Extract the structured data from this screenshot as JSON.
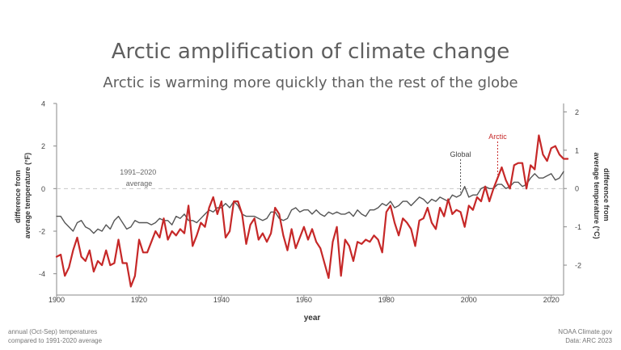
{
  "chart_data": {
    "type": "line",
    "title": "Arctic amplification of climate change",
    "subtitle": "Arctic is warming more quickly than the rest of the globe",
    "xlabel": "year",
    "ylabel_left": "difference from average temperature (°F)",
    "ylabel_right": "difference from average temperature (°C)",
    "xlim": [
      1900,
      2023
    ],
    "ylim": [
      -5,
      4
    ],
    "ylim_right": [
      -2.78,
      2.22
    ],
    "x_ticks": [
      1900,
      1920,
      1940,
      1960,
      1980,
      2000,
      2020
    ],
    "y_ticks_left": [
      -4,
      -2,
      0,
      2,
      4
    ],
    "y_ticks_right": [
      -2,
      -1,
      0,
      1,
      2
    ],
    "grid": false,
    "baseline_label": "1991–2020 average",
    "annotations": [
      "Global",
      "Arctic"
    ],
    "colors": {
      "arctic": "#c62828",
      "global": "#555555",
      "baseline": "#c8c8c8"
    },
    "x_start": 1900,
    "series": [
      {
        "name": "Arctic",
        "values": [
          -3.2,
          -3.1,
          -4.1,
          -3.7,
          -2.9,
          -2.3,
          -3.2,
          -3.4,
          -2.9,
          -3.9,
          -3.4,
          -3.6,
          -2.9,
          -3.6,
          -3.5,
          -2.4,
          -3.5,
          -3.5,
          -4.6,
          -4.1,
          -2.4,
          -3.0,
          -3.0,
          -2.5,
          -2.0,
          -2.3,
          -1.4,
          -2.4,
          -2.0,
          -2.2,
          -1.9,
          -2.1,
          -0.8,
          -2.7,
          -2.2,
          -1.6,
          -1.8,
          -0.9,
          -0.4,
          -1.2,
          -0.6,
          -2.3,
          -2.0,
          -0.6,
          -0.6,
          -1.2,
          -2.6,
          -1.7,
          -1.4,
          -2.4,
          -2.1,
          -2.5,
          -2.1,
          -0.9,
          -1.2,
          -2.2,
          -2.9,
          -1.9,
          -2.8,
          -2.3,
          -1.8,
          -2.4,
          -1.9,
          -2.5,
          -2.8,
          -3.5,
          -4.2,
          -2.5,
          -1.8,
          -4.1,
          -2.4,
          -2.7,
          -3.4,
          -2.5,
          -2.6,
          -2.4,
          -2.5,
          -2.2,
          -2.4,
          -3.0,
          -1.1,
          -0.8,
          -1.6,
          -2.2,
          -1.4,
          -1.6,
          -1.9,
          -2.7,
          -1.5,
          -1.4,
          -0.9,
          -1.6,
          -1.9,
          -0.9,
          -1.3,
          -0.5,
          -1.2,
          -1.0,
          -1.1,
          -1.8,
          -0.8,
          -1.0,
          -0.4,
          -0.6,
          0.1,
          -0.6,
          0.0,
          0.5,
          1.0,
          0.4,
          0.0,
          1.1,
          1.2,
          1.2,
          0.0,
          1.1,
          0.9,
          2.5,
          1.6,
          1.3,
          1.9,
          2.0,
          1.6,
          1.4,
          1.4
        ]
      },
      {
        "name": "Global",
        "values": [
          -1.3,
          -1.3,
          -1.6,
          -1.8,
          -2.0,
          -1.6,
          -1.5,
          -1.8,
          -1.9,
          -2.1,
          -1.9,
          -2.0,
          -1.7,
          -1.9,
          -1.5,
          -1.3,
          -1.6,
          -1.9,
          -1.8,
          -1.5,
          -1.6,
          -1.6,
          -1.6,
          -1.7,
          -1.6,
          -1.4,
          -1.5,
          -1.5,
          -1.7,
          -1.3,
          -1.4,
          -1.2,
          -1.5,
          -1.5,
          -1.6,
          -1.4,
          -1.2,
          -1.0,
          -1.1,
          -0.9,
          -0.9,
          -0.7,
          -0.9,
          -0.6,
          -0.8,
          -1.2,
          -1.3,
          -1.3,
          -1.3,
          -1.4,
          -1.5,
          -1.4,
          -1.1,
          -1.1,
          -1.4,
          -1.5,
          -1.4,
          -1.0,
          -0.9,
          -1.1,
          -1.0,
          -1.0,
          -1.2,
          -1.0,
          -1.2,
          -1.3,
          -1.1,
          -1.2,
          -1.1,
          -1.2,
          -1.2,
          -1.1,
          -1.3,
          -1.0,
          -1.2,
          -1.3,
          -1.0,
          -1.0,
          -0.9,
          -0.7,
          -0.8,
          -0.6,
          -0.9,
          -0.8,
          -0.6,
          -0.6,
          -0.8,
          -0.6,
          -0.4,
          -0.5,
          -0.7,
          -0.5,
          -0.6,
          -0.4,
          -0.5,
          -0.6,
          -0.3,
          -0.4,
          -0.3,
          0.1,
          -0.4,
          -0.3,
          -0.3,
          0.0,
          0.1,
          0.0,
          0.0,
          0.2,
          0.2,
          0.0,
          0.1,
          0.3,
          0.3,
          0.1,
          0.2,
          0.5,
          0.7,
          0.5,
          0.5,
          0.6,
          0.7,
          0.4,
          0.5,
          0.8
        ]
      }
    ]
  },
  "footer": {
    "note_line1": "annual (Oct-Sep) temperatures",
    "note_line2": "compared to 1991-2020 average",
    "credit_line1": "NOAA Climate.gov",
    "credit_line2": "Data: ARC 2023"
  }
}
